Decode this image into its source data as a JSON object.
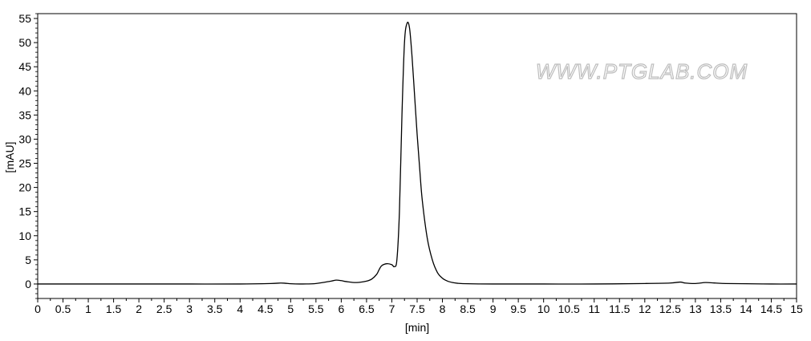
{
  "chart_data": {
    "type": "line",
    "title": "",
    "xlabel": "[min]",
    "ylabel": "[mAU]",
    "xlim": [
      0,
      15
    ],
    "ylim": [
      -3,
      56
    ],
    "xticks": [
      0,
      0.5,
      1,
      1.5,
      2,
      2.5,
      3,
      3.5,
      4,
      4.5,
      5,
      5.5,
      6,
      6.5,
      7,
      7.5,
      8,
      8.5,
      9,
      9.5,
      10,
      10.5,
      11,
      11.5,
      12,
      12.5,
      13,
      13.5,
      14,
      14.5,
      15
    ],
    "xtick_labels": [
      "0",
      "0.5",
      "1",
      "1.5",
      "2",
      "2.5",
      "3",
      "3.5",
      "4",
      "4.5",
      "5",
      "5.5",
      "6",
      "6.5",
      "7",
      "7.5",
      "8",
      "8.5",
      "9",
      "9.5",
      "10",
      "10.5",
      "11",
      "11.5",
      "12",
      "12.5",
      "13",
      "13.5",
      "14",
      "14.5",
      "15"
    ],
    "yticks": [
      0,
      5,
      10,
      15,
      20,
      25,
      30,
      35,
      40,
      45,
      50,
      55
    ],
    "ytick_labels": [
      "0",
      "5",
      "10",
      "15",
      "20",
      "25",
      "30",
      "35",
      "40",
      "45",
      "50",
      "55"
    ],
    "grid": false,
    "line_color": "#000000",
    "series": [
      {
        "x": [
          0,
          1,
          2,
          3,
          4,
          4.6,
          4.8,
          4.9,
          5.0,
          5.2,
          5.5,
          5.8,
          5.9,
          6.0,
          6.1,
          6.3,
          6.5,
          6.6,
          6.7,
          6.75,
          6.8,
          6.9,
          7.0,
          7.05,
          7.1,
          7.15,
          7.2,
          7.25,
          7.3,
          7.35,
          7.4,
          7.45,
          7.5,
          7.55,
          7.6,
          7.7,
          7.8,
          7.9,
          8.0,
          8.1,
          8.2,
          8.3,
          8.5,
          9.0,
          10,
          11,
          12,
          12.5,
          12.7,
          12.8,
          13.0,
          13.2,
          13.4,
          13.6,
          14,
          14.5,
          15
        ],
        "y": [
          0,
          0,
          0,
          0,
          0,
          0.1,
          0.2,
          0.15,
          0.05,
          0,
          0.1,
          0.6,
          0.8,
          0.7,
          0.5,
          0.3,
          0.6,
          1.0,
          2.0,
          3.0,
          3.8,
          4.2,
          4.0,
          3.6,
          5.0,
          15.0,
          35.0,
          50.0,
          54.0,
          53.0,
          47.0,
          39.0,
          31.0,
          24.0,
          17.5,
          9.5,
          5.0,
          2.4,
          1.2,
          0.6,
          0.3,
          0.15,
          0.05,
          0,
          0,
          0,
          0.1,
          0.2,
          0.4,
          0.2,
          0.1,
          0.3,
          0.2,
          0.1,
          0.05,
          0,
          0
        ]
      }
    ]
  },
  "watermark": "WWW.PTGLAB.COM"
}
